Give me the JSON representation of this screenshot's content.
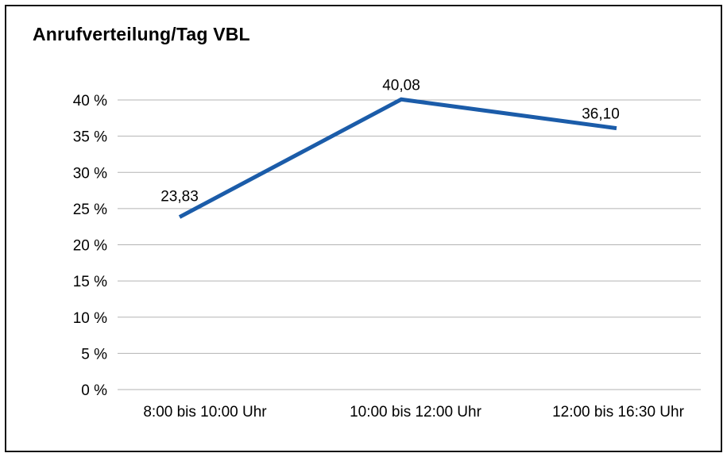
{
  "chart_data": {
    "type": "line",
    "title": "Anrufverteilung/Tag VBL",
    "categories": [
      "8:00 bis 10:00 Uhr",
      "10:00 bis 12:00 Uhr",
      "12:00 bis 16:30 Uhr"
    ],
    "values": [
      23.83,
      40.08,
      36.1
    ],
    "data_labels": [
      "23,83",
      "40,08",
      "36,10"
    ],
    "xlabel": "",
    "ylabel": "",
    "ylim": [
      0,
      40
    ],
    "ytick_step": 5,
    "ytick_labels": [
      "0 %",
      "5 %",
      "10 %",
      "15 %",
      "20 %",
      "25 %",
      "30 %",
      "35 %",
      "40 %"
    ],
    "grid": "horizontal",
    "legend": "none",
    "line_color": "#1b5ca9",
    "grid_color": "#b3b3b3",
    "text_color": "#000000",
    "border_color": "#111111"
  }
}
